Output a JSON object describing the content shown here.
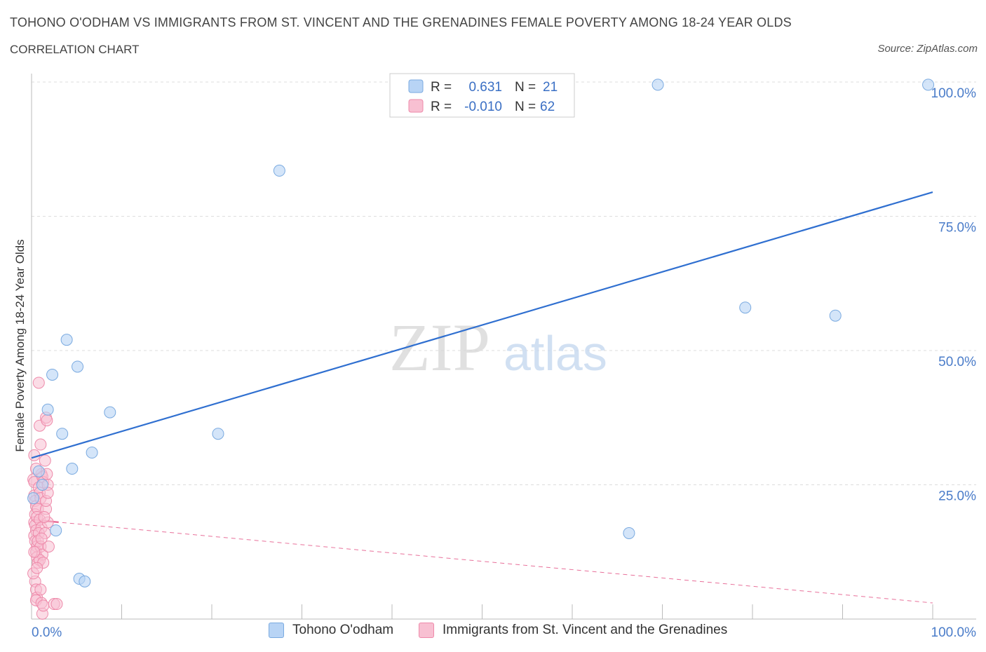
{
  "header": {
    "title": "TOHONO O'ODHAM VS IMMIGRANTS FROM ST. VINCENT AND THE GRENADINES FEMALE POVERTY AMONG 18-24 YEAR OLDS",
    "subtitle": "CORRELATION CHART",
    "source": "Source: ZipAtlas.com"
  },
  "watermark": {
    "zip": "ZIP",
    "atlas": "atlas"
  },
  "legend_box": {
    "rows": [
      {
        "r_label": "R =",
        "r_value": "0.631",
        "n_label": "N =",
        "n_value": "21"
      },
      {
        "r_label": "R =",
        "r_value": "-0.010",
        "n_label": "N =",
        "n_value": "62"
      }
    ]
  },
  "legend_bottom": {
    "items": [
      {
        "label": "Tohono O'odham"
      },
      {
        "label": "Immigrants from St. Vincent and the Grenadines"
      }
    ]
  },
  "colors": {
    "blue_fill": "#b8d4f5",
    "blue_stroke": "#7aaae0",
    "blue_line": "#2f6fd0",
    "pink_fill": "#f8c0d2",
    "pink_stroke": "#ee8aaa",
    "pink_line": "#e8709a",
    "tick_label": "#4a7cc9",
    "grid": "#dddddd"
  },
  "chart_data": {
    "type": "scatter",
    "title": "TOHONO O'ODHAM VS IMMIGRANTS FROM ST. VINCENT AND THE GRENADINES FEMALE POVERTY AMONG 18-24 YEAR OLDS",
    "xlabel": "",
    "ylabel": "Female Poverty Among 18-24 Year Olds",
    "xlim": [
      0,
      100
    ],
    "ylim": [
      0,
      100
    ],
    "x_tick_labels": [
      "0.0%",
      "100.0%"
    ],
    "y_ticks": [
      25,
      50,
      75,
      100
    ],
    "y_tick_labels": [
      "25.0%",
      "50.0%",
      "75.0%",
      "100.0%"
    ],
    "grid": true,
    "series": [
      {
        "name": "Tohono O'odham",
        "color": "#b8d4f5",
        "points": [
          [
            0.2,
            22.5
          ],
          [
            0.8,
            27.5
          ],
          [
            1.2,
            25.0
          ],
          [
            1.8,
            39.0
          ],
          [
            2.3,
            45.5
          ],
          [
            2.7,
            16.5
          ],
          [
            3.4,
            34.5
          ],
          [
            3.9,
            52.0
          ],
          [
            4.5,
            28.0
          ],
          [
            5.1,
            47.0
          ],
          [
            5.3,
            7.5
          ],
          [
            5.9,
            7.0
          ],
          [
            6.7,
            31.0
          ],
          [
            8.7,
            38.5
          ],
          [
            20.7,
            34.5
          ],
          [
            27.5,
            83.5
          ],
          [
            66.3,
            16.0
          ],
          [
            69.5,
            99.5
          ],
          [
            79.2,
            58.0
          ],
          [
            89.2,
            56.5
          ],
          [
            99.5,
            99.5
          ]
        ],
        "trend": {
          "x": [
            0,
            100
          ],
          "y": [
            30,
            79.5
          ]
        }
      },
      {
        "name": "Immigrants from St. Vincent and the Grenadines",
        "color": "#f8c0d2",
        "points": [
          [
            0.2,
            26.0
          ],
          [
            0.3,
            25.5
          ],
          [
            0.3,
            23.0
          ],
          [
            0.4,
            22.0
          ],
          [
            0.5,
            21.0
          ],
          [
            0.4,
            19.5
          ],
          [
            0.3,
            18.0
          ],
          [
            0.4,
            17.5
          ],
          [
            0.5,
            16.5
          ],
          [
            0.3,
            15.5
          ],
          [
            0.4,
            14.5
          ],
          [
            0.6,
            13.5
          ],
          [
            0.5,
            12.5
          ],
          [
            0.6,
            11.5
          ],
          [
            0.7,
            10.5
          ],
          [
            0.4,
            7.0
          ],
          [
            0.5,
            5.5
          ],
          [
            0.6,
            4.0
          ],
          [
            0.5,
            3.5
          ],
          [
            0.3,
            30.5
          ],
          [
            0.8,
            44.0
          ],
          [
            0.9,
            36.0
          ],
          [
            1.0,
            32.5
          ],
          [
            1.1,
            27.0
          ],
          [
            1.2,
            26.5
          ],
          [
            1.3,
            25.5
          ],
          [
            0.8,
            24.5
          ],
          [
            0.9,
            23.5
          ],
          [
            1.0,
            22.5
          ],
          [
            0.7,
            20.5
          ],
          [
            0.6,
            19.0
          ],
          [
            0.9,
            18.5
          ],
          [
            1.1,
            17.0
          ],
          [
            0.8,
            16.0
          ],
          [
            0.7,
            14.5
          ],
          [
            1.0,
            13.5
          ],
          [
            1.2,
            12.0
          ],
          [
            0.9,
            11.0
          ],
          [
            1.3,
            10.5
          ],
          [
            1.0,
            5.5
          ],
          [
            1.1,
            3.0
          ],
          [
            1.2,
            1.0
          ],
          [
            1.6,
            37.5
          ],
          [
            1.7,
            37.0
          ],
          [
            1.5,
            29.5
          ],
          [
            1.7,
            27.0
          ],
          [
            1.8,
            25.0
          ],
          [
            1.6,
            20.5
          ],
          [
            1.8,
            18.0
          ],
          [
            1.5,
            16.0
          ],
          [
            1.9,
            13.5
          ],
          [
            1.3,
            2.5
          ],
          [
            2.5,
            2.8
          ],
          [
            2.8,
            2.8
          ],
          [
            1.4,
            19.0
          ],
          [
            1.6,
            22.0
          ],
          [
            1.8,
            23.5
          ],
          [
            0.2,
            8.5
          ],
          [
            0.3,
            12.5
          ],
          [
            0.5,
            28.0
          ],
          [
            0.6,
            9.5
          ],
          [
            1.1,
            15.0
          ]
        ],
        "trend": {
          "x": [
            0,
            100
          ],
          "y": [
            18.5,
            3.0
          ]
        }
      }
    ]
  }
}
